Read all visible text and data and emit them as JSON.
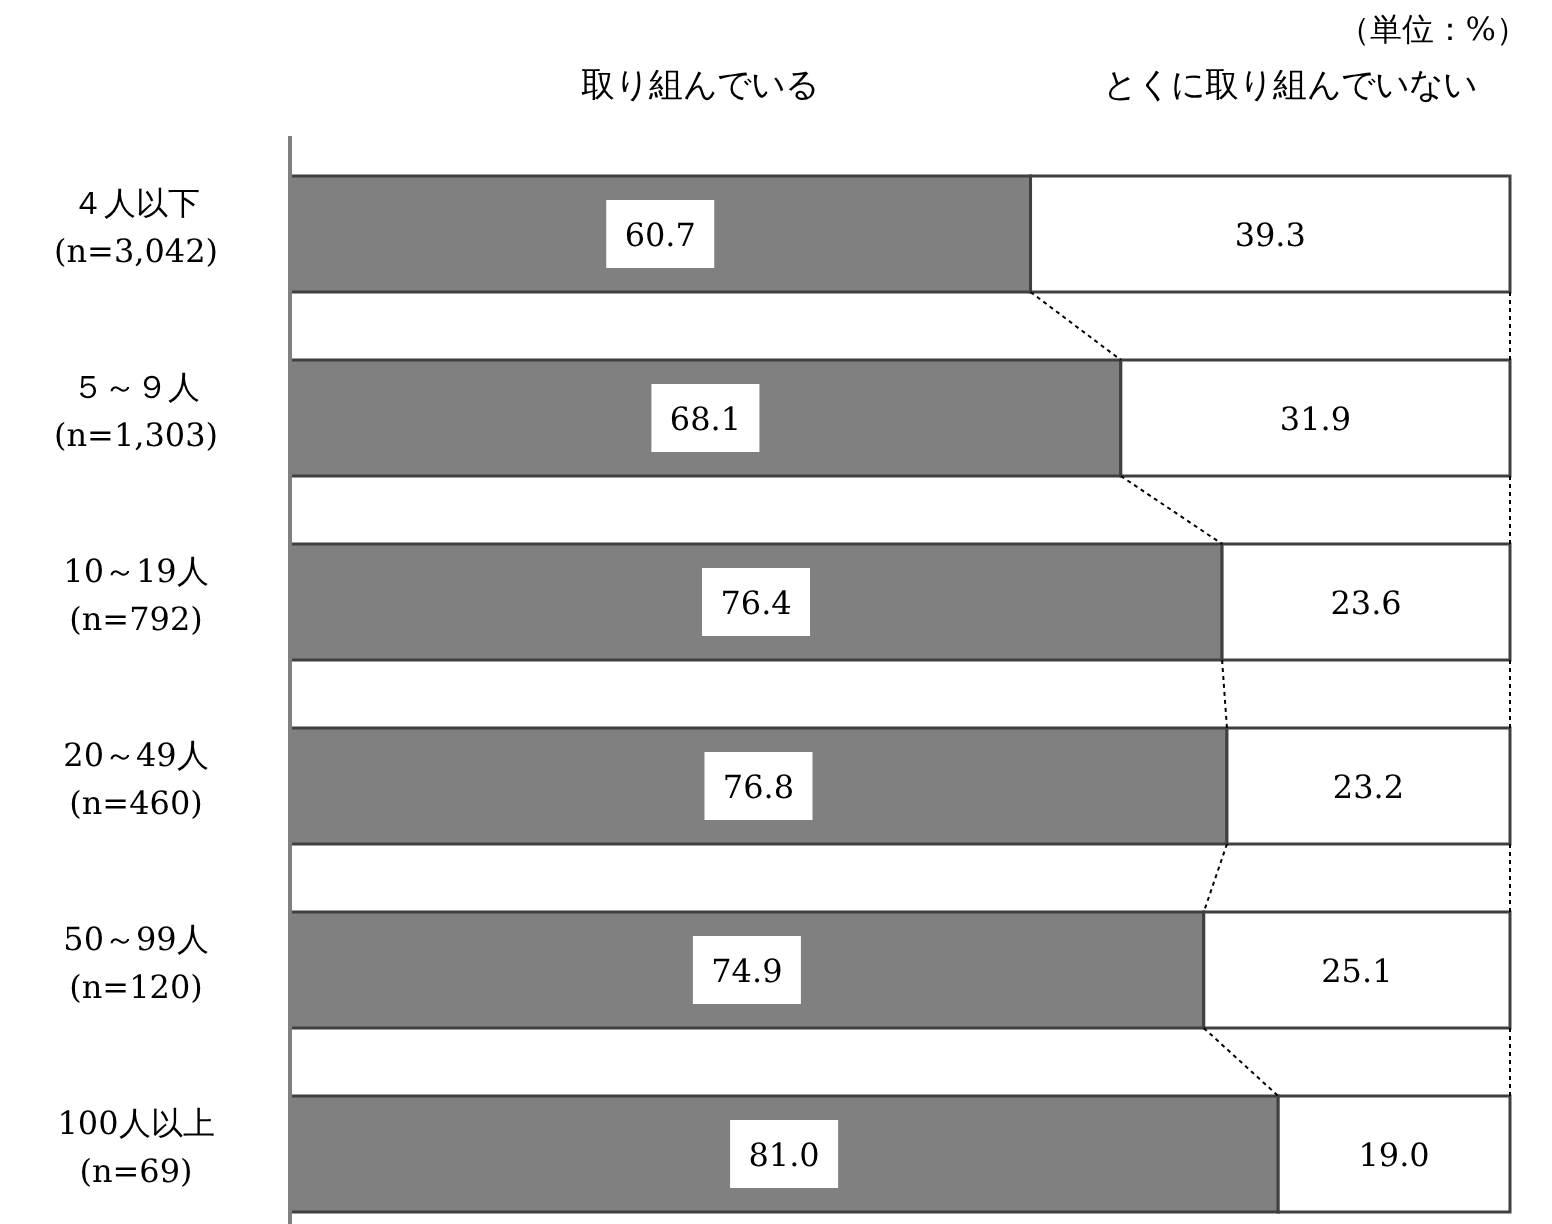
{
  "chart_data": {
    "type": "bar",
    "orientation": "horizontal",
    "stacked": true,
    "legend": "top",
    "annotations": [
      "（単位：%）"
    ],
    "categories": [
      "４人以下\n(n=3,042)",
      "５～９人\n(n=1,303)",
      "10～19人\n(n=792)",
      "20～49人\n(n=460)",
      "50～99人\n(n=120)",
      "100人以上\n(n=69)"
    ],
    "series": [
      {
        "name": "取り組んでいる",
        "color": "#808080",
        "values": [
          60.7,
          68.1,
          76.4,
          76.8,
          74.9,
          81.0
        ],
        "value_labels": [
          "60.7",
          "68.1",
          "76.4",
          "76.8",
          "74.9",
          "81.0"
        ]
      },
      {
        "name": "とくに取り組んでいない",
        "color": "#ffffff",
        "values": [
          39.3,
          31.9,
          23.6,
          23.2,
          25.1,
          19.0
        ],
        "value_labels": [
          "39.3",
          "31.9",
          "23.6",
          "23.2",
          "25.1",
          "19.0"
        ]
      }
    ]
  }
}
